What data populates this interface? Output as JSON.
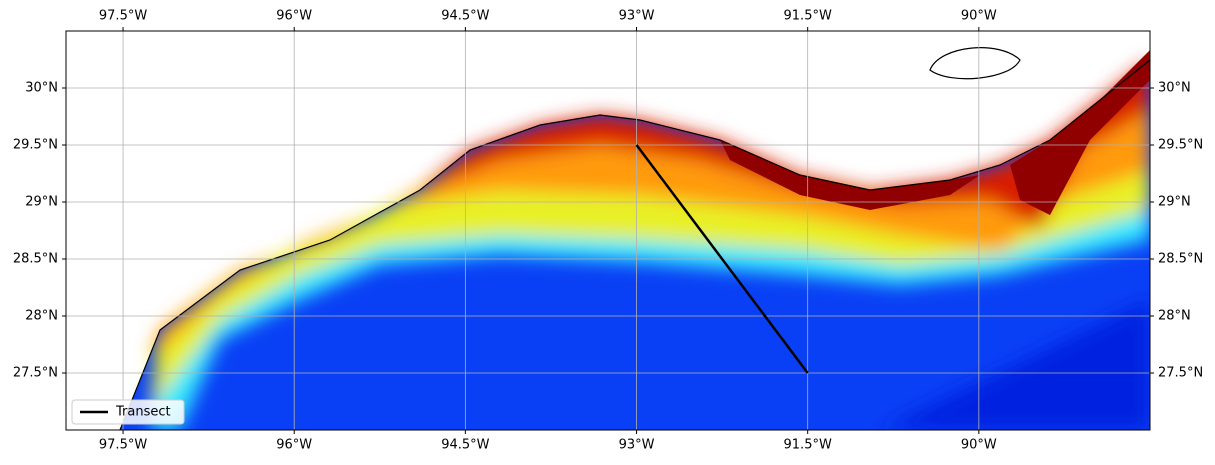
{
  "chart_data": {
    "type": "map",
    "xlim": [
      -98,
      -88.5
    ],
    "ylim": [
      27,
      30.5
    ],
    "xticks": [
      {
        "value": -97.5,
        "label": "97.5°W"
      },
      {
        "value": -96,
        "label": "96°W"
      },
      {
        "value": -94.5,
        "label": "94.5°W"
      },
      {
        "value": -93,
        "label": "93°W"
      },
      {
        "value": -91.5,
        "label": "91.5°W"
      },
      {
        "value": -90,
        "label": "90°W"
      }
    ],
    "yticks": [
      {
        "value": 27.5,
        "label": "27.5°N"
      },
      {
        "value": 28,
        "label": "28°N"
      },
      {
        "value": 28.5,
        "label": "28.5°N"
      },
      {
        "value": 29,
        "label": "29°N"
      },
      {
        "value": 29.5,
        "label": "29.5°N"
      },
      {
        "value": 30,
        "label": "30°N"
      }
    ],
    "grid": true,
    "legend": "lower left",
    "series": [
      {
        "name": "Transect",
        "color": "#000000",
        "x": [
          -93,
          -91.5
        ],
        "values": [
          29.5,
          27.5
        ]
      }
    ]
  }
}
